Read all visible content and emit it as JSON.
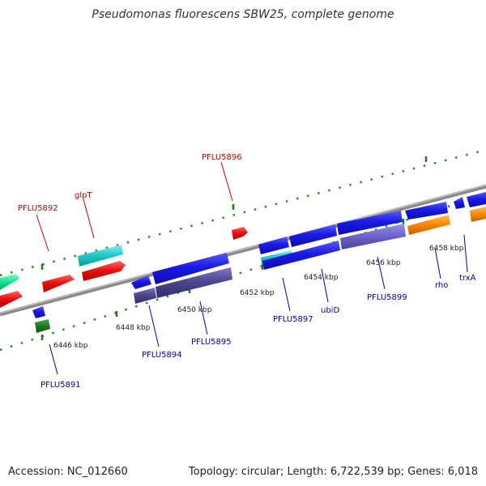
{
  "title": "Pseudomonas fluorescens SBW25, complete genome",
  "footer": {
    "accession": "Accession: NC_012660",
    "summary": "Topology: circular; Length: 6,722,539 bp; Genes: 6,018"
  },
  "colors": {
    "forward_label": "#cc0000",
    "reverse_label": "#0000aa",
    "backbone": "#8a8a8a",
    "tick": "#2a8a2a"
  },
  "kbp_labels": [
    "6446 kbp",
    "6448 kbp",
    "6450 kbp",
    "6452 kbp",
    "6454 kbp",
    "6456 kbp",
    "6458 kbp"
  ],
  "forward_labels": [
    "PFLU5892",
    "glpT",
    "PFLU5896"
  ],
  "reverse_labels": [
    "PFLU5891",
    "PFLU5894",
    "PFLU5895",
    "PFLU5897",
    "ubiD",
    "PFLU5899",
    "rho",
    "trxA"
  ]
}
